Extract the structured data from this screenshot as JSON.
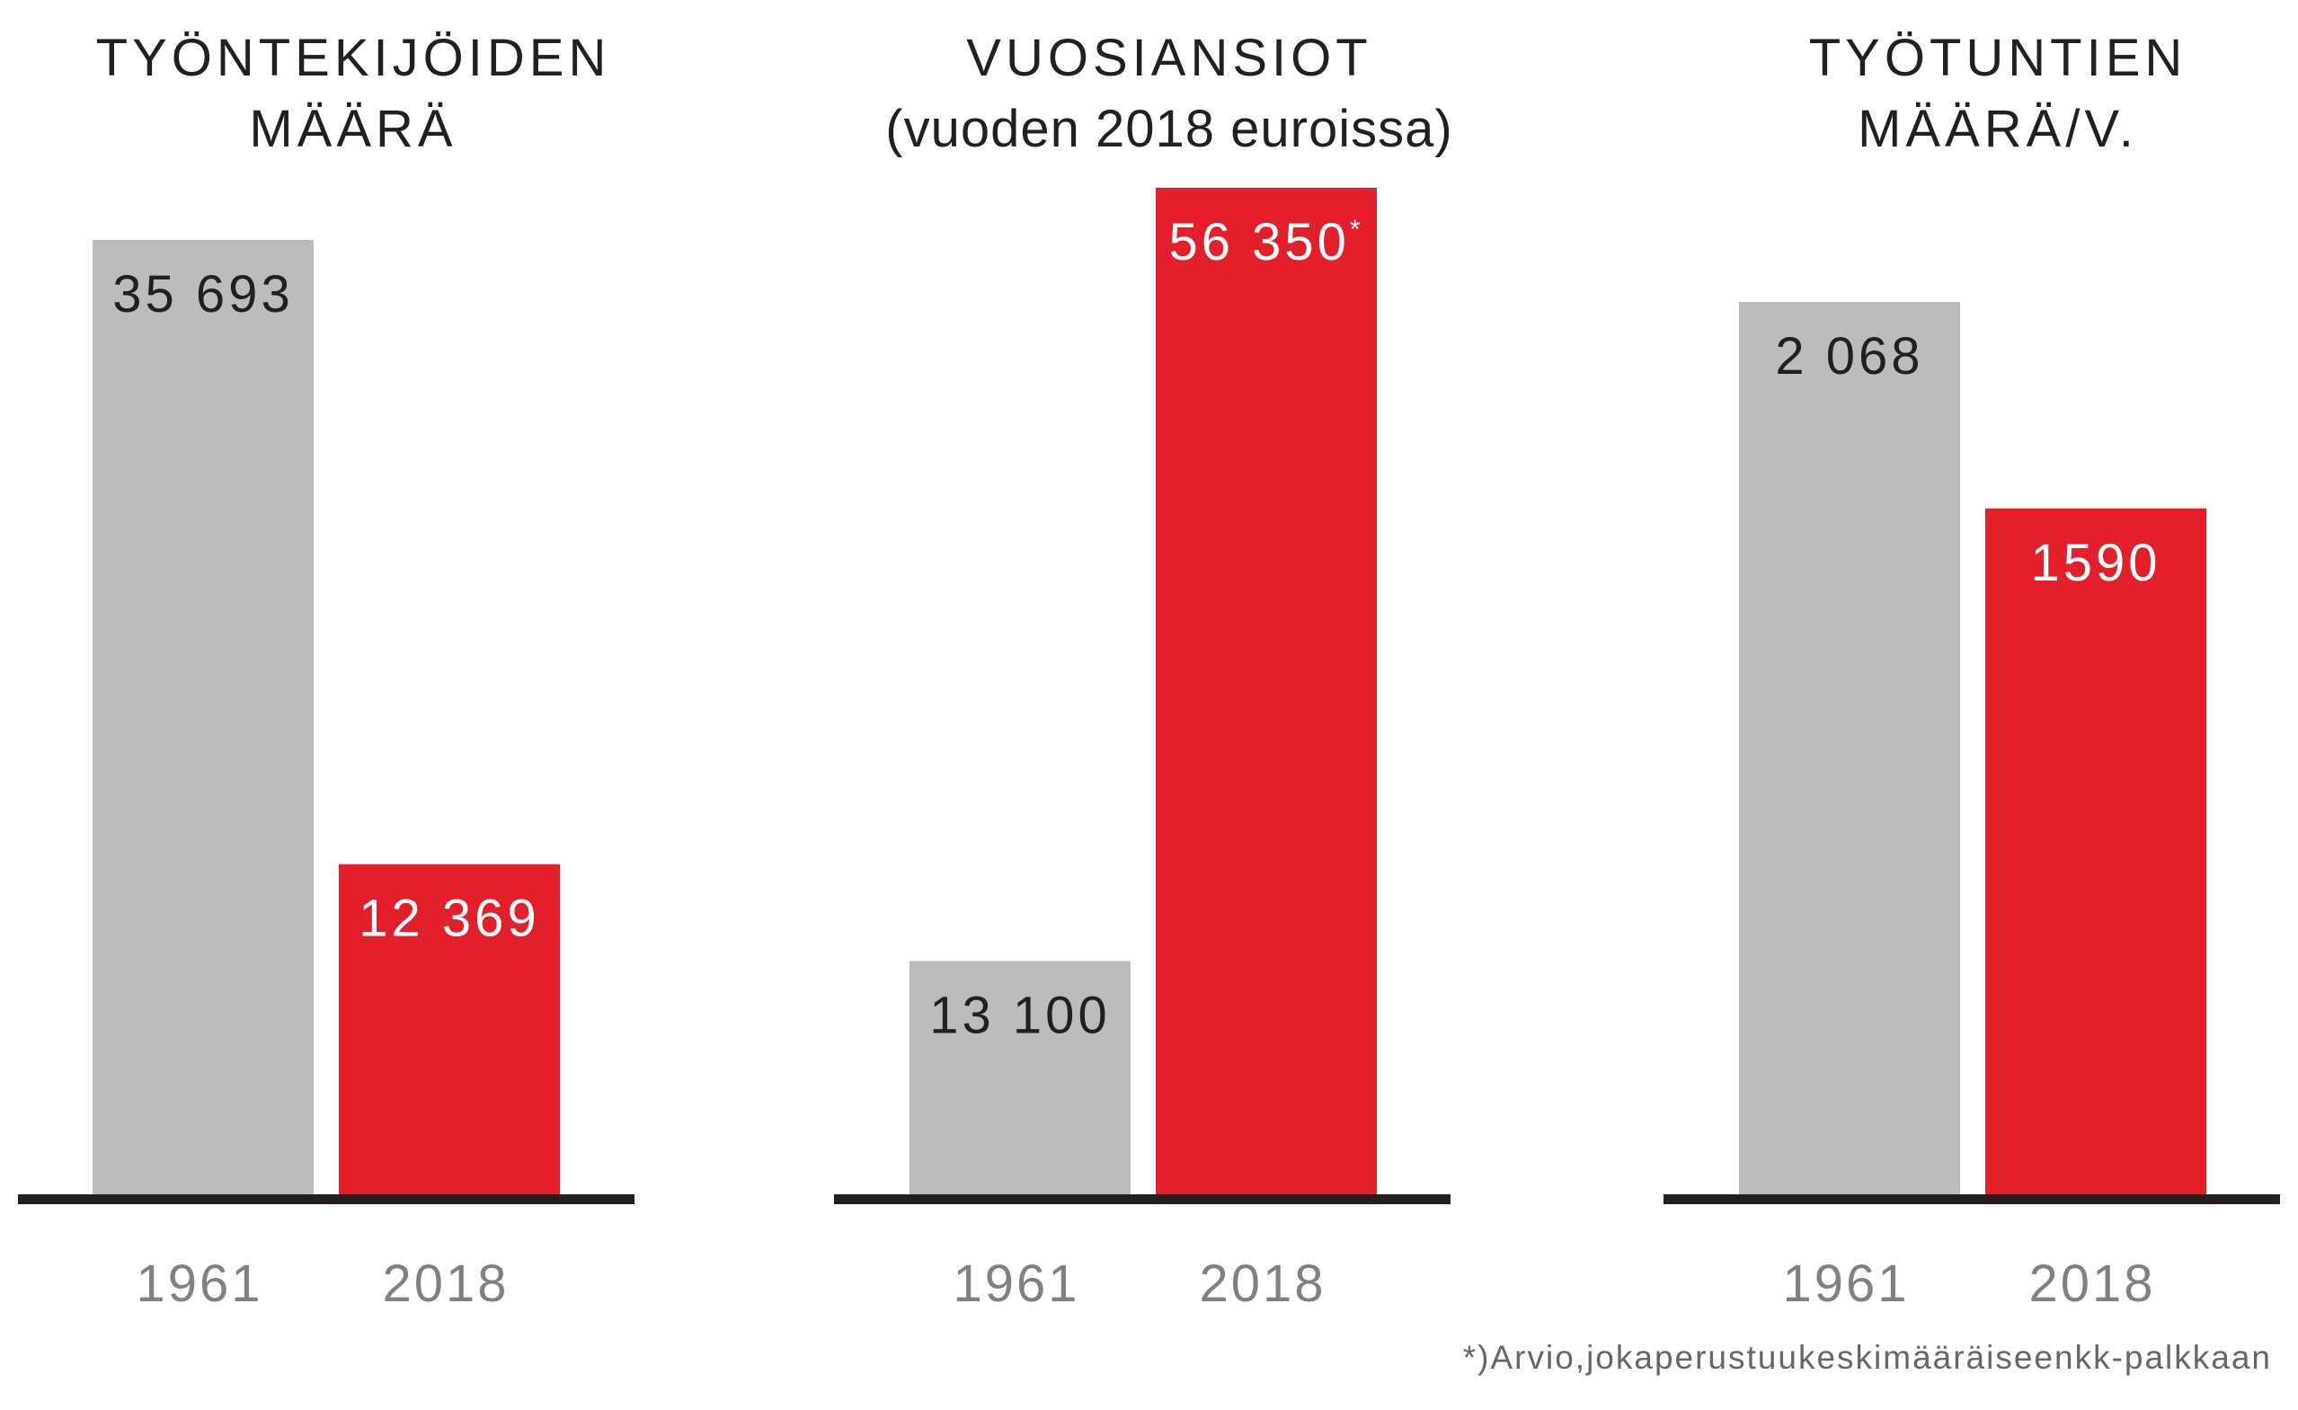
{
  "colors": {
    "bar_1961": "#bcbcbc",
    "bar_2018": "#e21f2b",
    "baseline": "#231f20",
    "label_dark": "#231f20",
    "label_light": "#ffffff",
    "category": "#808080"
  },
  "chart_data": [
    {
      "type": "bar",
      "title_lines": [
        "TYÖNTEKIJÖIDEN",
        "MÄÄRÄ"
      ],
      "categories": [
        "1961",
        "2018"
      ],
      "values": [
        35693,
        12369
      ],
      "value_labels": [
        "35 693",
        "12 369"
      ],
      "value_marks": [
        "",
        ""
      ]
    },
    {
      "type": "bar",
      "title_lines": [
        "VUOSIANSIOT",
        "(vuoden 2018 euroissa)"
      ],
      "categories": [
        "1961",
        "2018"
      ],
      "values": [
        13100,
        56350
      ],
      "value_labels": [
        "13 100",
        "56 350"
      ],
      "value_marks": [
        "",
        "*"
      ]
    },
    {
      "type": "bar",
      "title_lines": [
        "TYÖTUNTIEN",
        "MÄÄRÄ/V."
      ],
      "categories": [
        "1961",
        "2018"
      ],
      "values": [
        2068,
        1590
      ],
      "value_labels": [
        "2 068",
        "1590"
      ],
      "value_marks": [
        "",
        ""
      ]
    }
  ],
  "footnote": "*)Arvio,jokaperustuukeskimääräiseenkk-palkkaan"
}
